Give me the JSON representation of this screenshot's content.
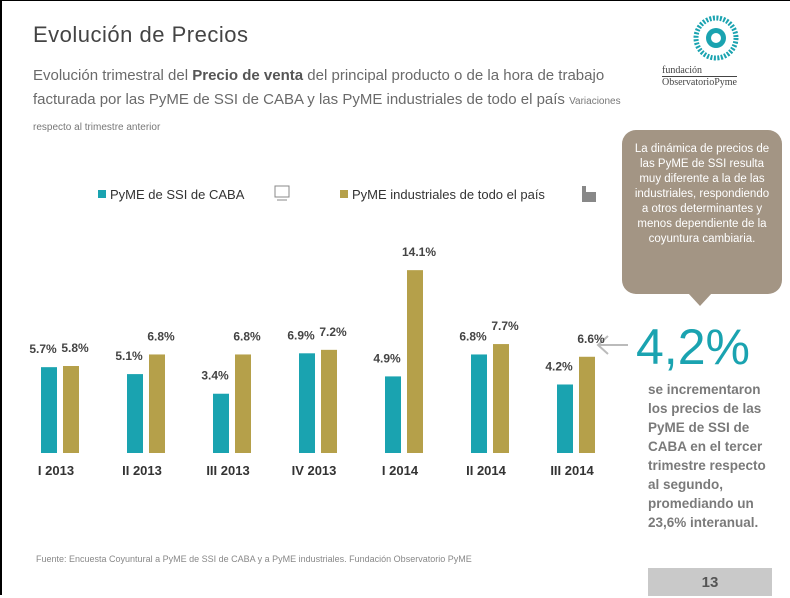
{
  "slide": {
    "title": "Evolución de Precios",
    "subtitle": [
      "Evolución trimestral del ",
      "Precio de venta",
      " del principal producto o de la hora de trabajo facturada por las PyME de SSI de CABA y las PyME industriales de todo el país"
    ],
    "note": "Variaciones  respecto al trimestre anterior",
    "callout": "La dinámica de precios de las PyME de SSI resulta muy diferente a la de las industriales, respondiendo a otros determinantes y menos dependiente de la coyuntura cambiaria.",
    "highlight": "4,2%",
    "highlight_text": "se incrementaron los precios de las PyME de SSI de CABA en el tercer trimestre respecto al segundo, promediando un 23,6% interanual.",
    "source": "Fuente: Encuesta Coyuntural a PyME de SSI de CABA y a PyME industriales. Fundación Observatorio PyME",
    "page": "13",
    "logo": [
      "fundación",
      "ObservatorioPyme"
    ]
  },
  "chart_data": {
    "type": "bar",
    "categories": [
      "I 2013",
      "II 2013",
      "III 2013",
      "IV 2013",
      "I 2014",
      "II 2014",
      "III 2014"
    ],
    "series": [
      {
        "name": "PyME de SSI de CABA",
        "color": "#1aa3b0",
        "values": [
          5.7,
          5.1,
          3.4,
          6.9,
          4.9,
          6.8,
          4.2
        ],
        "value_labels": [
          "5.7%",
          "5.1%",
          "3.4%",
          "6.9%",
          "4.9%",
          "6.8%",
          "4.2%"
        ]
      },
      {
        "name": "PyME industriales de todo el país",
        "color": "#b5a04a",
        "values": [
          5.8,
          6.8,
          6.8,
          7.2,
          14.1,
          7.7,
          6.6
        ],
        "value_labels": [
          "5.8%",
          "6.8%",
          "6.8%",
          "7.2%",
          "14.1%",
          "7.7%",
          "6.6%"
        ]
      }
    ]
  }
}
